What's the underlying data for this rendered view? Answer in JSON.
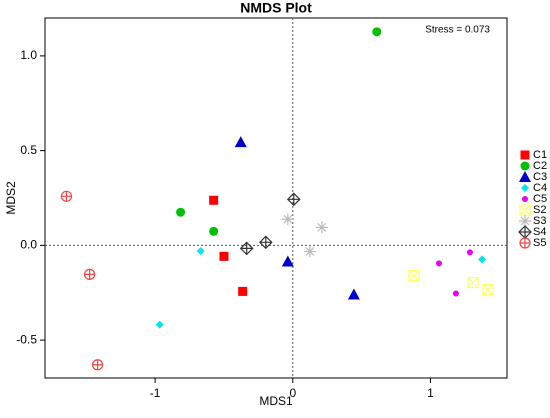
{
  "chart_data": {
    "type": "scatter",
    "title": "NMDS Plot",
    "x_label": "MDS1",
    "y_label": "MDS2",
    "annotation": "Stress = 0.073",
    "xlim": [
      -1.8,
      1.556
    ],
    "ylim": [
      -0.7,
      1.2
    ],
    "xticks": [
      -1,
      0,
      1
    ],
    "yticks": [
      {
        "value": -0.5,
        "label": "-0.5"
      },
      {
        "value": 0,
        "label": "0.0"
      },
      {
        "value": 0.5,
        "label": "0.5"
      },
      {
        "value": 1,
        "label": "1.0"
      }
    ],
    "zero_lines": true,
    "legend": "right",
    "series": [
      {
        "name": "C1",
        "color": "#ff0000",
        "marker": "square",
        "x": [
          -0.575,
          -0.5,
          -0.364
        ],
        "values": [
          0.238,
          -0.058,
          -0.243
        ]
      },
      {
        "name": "C2",
        "color": "#00c000",
        "marker": "circle",
        "x": [
          0.61,
          -0.815,
          -0.575
        ],
        "values": [
          1.127,
          0.175,
          0.074
        ]
      },
      {
        "name": "C3",
        "color": "#0000cc",
        "marker": "triangle",
        "x": [
          -0.378,
          -0.036,
          0.444
        ],
        "values": [
          0.545,
          -0.085,
          -0.259
        ]
      },
      {
        "name": "C4",
        "color": "#00e5ee",
        "marker": "diamond",
        "x": [
          -0.669,
          -0.967,
          1.375
        ],
        "values": [
          -0.03,
          -0.418,
          -0.074
        ]
      },
      {
        "name": "C5",
        "color": "#ee00ee",
        "marker": "dot",
        "x": [
          1.062,
          1.287,
          1.185
        ],
        "values": [
          -0.095,
          -0.037,
          -0.254
        ]
      },
      {
        "name": "S2",
        "color": "#ffff66",
        "marker": "squarex",
        "x": [
          0.88,
          1.309,
          1.418
        ],
        "values": [
          -0.159,
          -0.196,
          -0.233
        ]
      },
      {
        "name": "S3",
        "color": "#bbbbbb",
        "marker": "asterisk",
        "x": [
          -0.036,
          0.211,
          0.124
        ],
        "values": [
          0.138,
          0.095,
          -0.032
        ]
      },
      {
        "name": "S4",
        "color": "#333333",
        "marker": "diamondplus",
        "x": [
          0.007,
          -0.196,
          -0.335
        ],
        "values": [
          0.243,
          0.016,
          -0.016
        ]
      },
      {
        "name": "S5",
        "color": "#ee4444",
        "marker": "circleplus",
        "x": [
          -1.644,
          -1.476,
          -1.418
        ],
        "values": [
          0.259,
          -0.153,
          -0.63
        ]
      }
    ]
  }
}
